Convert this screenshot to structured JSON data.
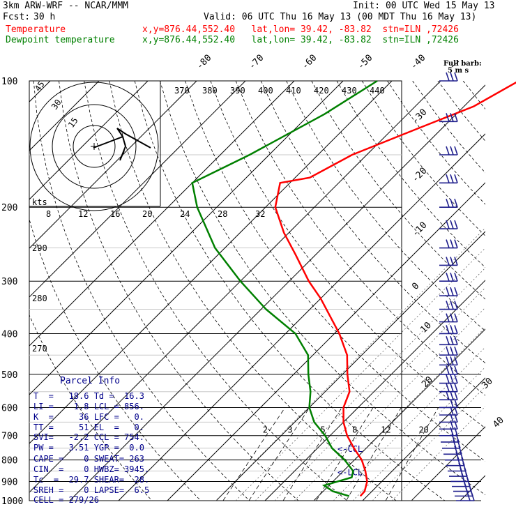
{
  "header": {
    "model": "3km ARW-WRF -- NCAR/MMM",
    "init": "Init: 00 UTC Wed 15 May 13",
    "fcst_label": "Fcst:",
    "fcst_value": "30 h",
    "valid": "Valid: 06 UTC Thu 16 May 13 (00 MDT Thu 16 May 13)",
    "temperature_label": "Temperature",
    "dewpoint_label": "Dewpoint temperature",
    "temp_location": "x,y=876.44,552.40   lat,lon= 39.42, -83.82  stn=ILN ,72426",
    "dew_location": "x,y=876.44,552.40   lat,lon= 39.42, -83.82  stn=ILN ,72426"
  },
  "chart_data": {
    "type": "line",
    "subtype": "skew-T log-p sounding",
    "ylabel": "",
    "pressure_ticks": [
      100,
      200,
      300,
      400,
      500,
      600,
      700,
      800,
      900,
      1000
    ],
    "isotherm_labels": [
      "-80",
      "-70",
      "-60",
      "-50",
      "-40",
      "-30",
      "-20",
      "-10",
      "0",
      "10",
      "20",
      "30",
      "40"
    ],
    "theta_labels": [
      "370",
      "380",
      "390",
      "400",
      "410",
      "420",
      "430",
      "440"
    ],
    "theta_labels_left": [
      "290",
      "280",
      "270"
    ],
    "mixing_ratio_labels": [
      "2",
      "3",
      "5",
      "8",
      "12",
      "20"
    ],
    "vapor_scale_labels": [
      "8",
      "12",
      "16",
      "20",
      "24",
      "28",
      "32"
    ],
    "wind_barb_legend": "Full barb:",
    "wind_barb_legend_unit": "5 m s",
    "ccl_label": "<-CCL",
    "lcl_label": "<-LCL",
    "series": [
      {
        "name": "Temperature",
        "color": "#ff0000",
        "points": [
          [
            100,
            -34
          ],
          [
            115,
            -38
          ],
          [
            130,
            -45
          ],
          [
            150,
            -53
          ],
          [
            170,
            -57
          ],
          [
            175,
            -62
          ],
          [
            200,
            -58
          ],
          [
            230,
            -51
          ],
          [
            260,
            -44
          ],
          [
            300,
            -36
          ],
          [
            330,
            -30
          ],
          [
            400,
            -19
          ],
          [
            450,
            -13
          ],
          [
            500,
            -9
          ],
          [
            550,
            -5
          ],
          [
            600,
            -3
          ],
          [
            650,
            0
          ],
          [
            700,
            3.5
          ],
          [
            750,
            7.5
          ],
          [
            800,
            11.5
          ],
          [
            850,
            14.5
          ],
          [
            900,
            17
          ],
          [
            950,
            18.5
          ],
          [
            975,
            18.6
          ]
        ]
      },
      {
        "name": "Dewpoint temperature",
        "color": "#008000",
        "points": [
          [
            100,
            -63
          ],
          [
            120,
            -67
          ],
          [
            150,
            -74
          ],
          [
            175,
            -80
          ],
          [
            200,
            -74
          ],
          [
            250,
            -62
          ],
          [
            300,
            -50
          ],
          [
            350,
            -39
          ],
          [
            400,
            -28
          ],
          [
            450,
            -21
          ],
          [
            500,
            -17
          ],
          [
            550,
            -13
          ],
          [
            600,
            -10
          ],
          [
            650,
            -6
          ],
          [
            700,
            -1
          ],
          [
            750,
            3
          ],
          [
            800,
            8
          ],
          [
            850,
            12
          ],
          [
            880,
            13
          ],
          [
            920,
            9
          ],
          [
            950,
            12
          ],
          [
            975,
            16.3
          ]
        ]
      }
    ]
  },
  "hodograph": {
    "rings": [
      "15",
      "30",
      "45"
    ],
    "unit": "kts"
  },
  "parcel_info": {
    "title": "Parcel Info",
    "lines": [
      "T  =   18.6 Td =  16.3",
      "LI =    1.8 LCL = 856.",
      "K  =     36 LFC =   0.",
      "TT =     51 EL  =   0.",
      "SVI=   -2.2 CCL = 754.",
      "PW =   3.51 YGP =  0.0",
      "CAPE =    0 SWEAT= 263",
      "CIN  =    0 HWBZ= 3945.",
      "Tc  =  29.7 SHEAR=  28.",
      "SREH =    0 LAPSE=  6.5",
      "CELL = 279/26"
    ]
  }
}
